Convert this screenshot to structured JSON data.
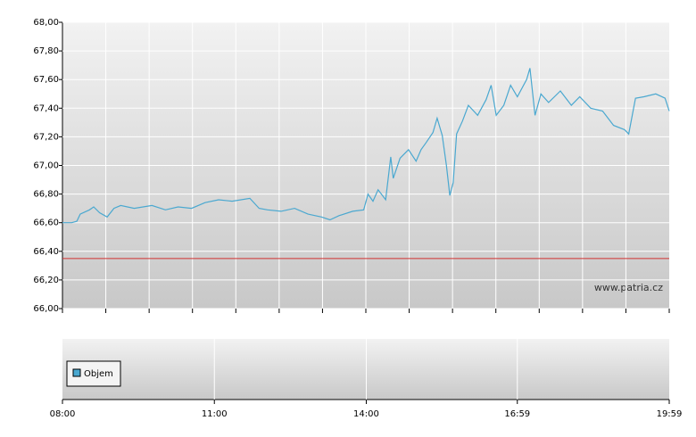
{
  "chart_data": {
    "type": "line",
    "x": [
      "08:00",
      "08:11",
      "08:17",
      "08:21",
      "08:32",
      "08:37",
      "08:44",
      "08:53",
      "09:01",
      "09:09",
      "09:25",
      "09:46",
      "10:02",
      "10:17",
      "10:33",
      "10:49",
      "11:05",
      "11:21",
      "11:42",
      "11:53",
      "12:03",
      "12:19",
      "12:35",
      "12:51",
      "13:07",
      "13:17",
      "13:28",
      "13:44",
      "13:57",
      "14:02",
      "14:08",
      "14:14",
      "14:23",
      "14:29",
      "14:32",
      "14:40",
      "14:50",
      "14:59",
      "15:05",
      "15:11",
      "15:19",
      "15:24",
      "15:30",
      "15:35",
      "15:39",
      "15:43",
      "15:47",
      "15:54",
      "16:01",
      "16:12",
      "16:22",
      "16:28",
      "16:34",
      "16:43",
      "16:51",
      "16:59",
      "17:10",
      "17:14",
      "17:20",
      "17:27",
      "17:36",
      "17:50",
      "18:03",
      "18:13",
      "18:26",
      "18:40",
      "18:53",
      "19:06",
      "19:11",
      "19:19",
      "19:29",
      "19:43",
      "19:54",
      "19:59"
    ],
    "series": [
      {
        "color": "#4aa8d0",
        "values": [
          66.6,
          66.6,
          66.61,
          66.66,
          66.69,
          66.71,
          66.67,
          66.64,
          66.7,
          66.72,
          66.7,
          66.72,
          66.69,
          66.71,
          66.7,
          66.74,
          66.76,
          66.75,
          66.77,
          66.7,
          66.69,
          66.68,
          66.7,
          66.66,
          66.64,
          66.62,
          66.65,
          66.68,
          66.69,
          66.8,
          66.75,
          66.83,
          66.76,
          67.06,
          66.91,
          67.05,
          67.11,
          67.03,
          67.11,
          67.16,
          67.23,
          67.33,
          67.21,
          67.0,
          66.79,
          66.88,
          67.22,
          67.31,
          67.42,
          67.35,
          67.46,
          67.56,
          67.35,
          67.42,
          67.56,
          67.48,
          67.6,
          67.68,
          67.35,
          67.5,
          67.44,
          67.52,
          67.42,
          67.48,
          67.4,
          67.38,
          67.28,
          67.25,
          67.22,
          67.47,
          67.48,
          67.5,
          67.47,
          67.38
        ]
      }
    ],
    "xlim": [
      "08:00",
      "19:59"
    ],
    "xticks": [
      "08:00",
      "11:00",
      "14:00",
      "16:59",
      "19:59"
    ],
    "x_grid_divisions": 14,
    "ylim": [
      66,
      68
    ],
    "yticks": [
      {
        "value": 66.0,
        "label": "66,00"
      },
      {
        "value": 66.2,
        "label": "66,20"
      },
      {
        "value": 66.4,
        "label": "66,40"
      },
      {
        "value": 66.6,
        "label": "66,60"
      },
      {
        "value": 66.8,
        "label": "66,80"
      },
      {
        "value": 67.0,
        "label": "67,00"
      },
      {
        "value": 67.2,
        "label": "67,20"
      },
      {
        "value": 67.4,
        "label": "67,40"
      },
      {
        "value": 67.6,
        "label": "67,60"
      },
      {
        "value": 67.8,
        "label": "67,80"
      },
      {
        "value": 68.0,
        "label": "68,00"
      }
    ],
    "grid": true,
    "reference_line": 66.35,
    "reference_color": "#d03030",
    "watermark": "www.patria.cz",
    "volume_legend": "Objem",
    "volume_color": "#4aa8d0"
  }
}
